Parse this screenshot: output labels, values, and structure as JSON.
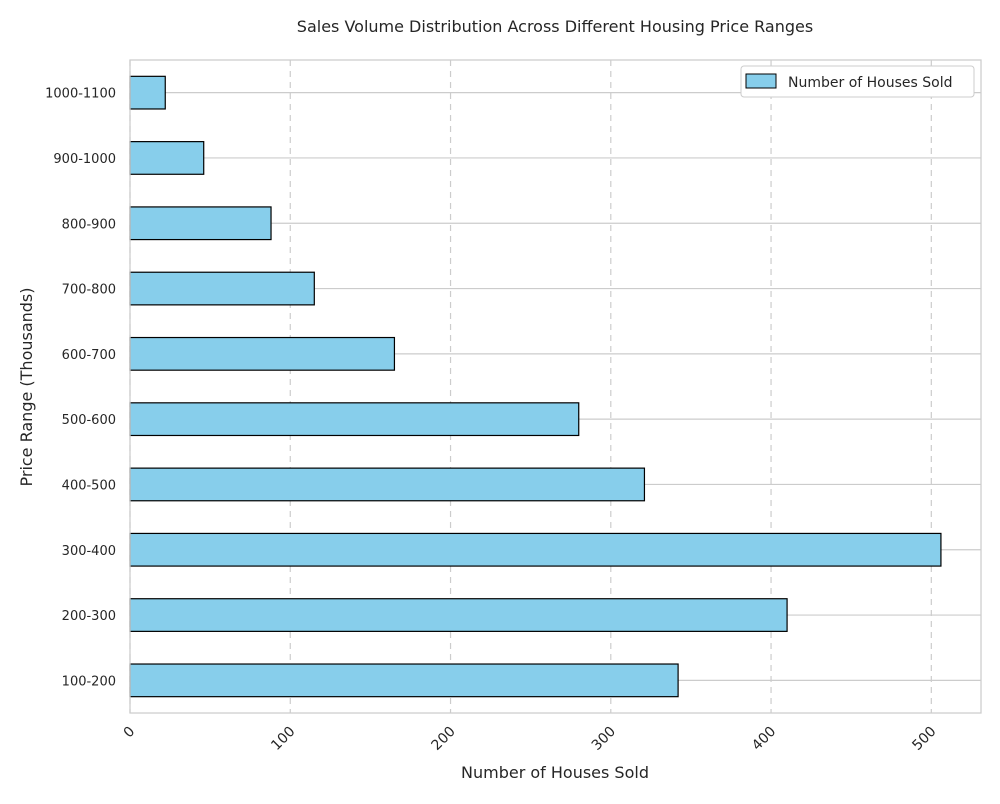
{
  "chart_data": {
    "type": "bar",
    "orientation": "horizontal",
    "title": "Sales Volume Distribution Across Different Housing Price Ranges",
    "xlabel": "Number of Houses Sold",
    "ylabel": "Price Range (Thousands)",
    "categories": [
      "100-200",
      "200-300",
      "300-400",
      "400-500",
      "500-600",
      "600-700",
      "700-800",
      "800-900",
      "900-1000",
      "1000-1100"
    ],
    "series": [
      {
        "name": "Number of Houses Sold",
        "values": [
          342,
          410,
          506,
          321,
          280,
          165,
          115,
          88,
          46,
          22
        ]
      }
    ],
    "xlim": [
      0,
      531
    ],
    "xticks": [
      0,
      100,
      200,
      300,
      400,
      500
    ],
    "xtick_labels": [
      "0",
      "100",
      "200",
      "300",
      "400",
      "500"
    ],
    "grid": true,
    "legend_position": "top-right",
    "colors": {
      "bar_fill": "#87ceeb",
      "bar_edge": "#000000",
      "grid": "#cccccc",
      "frame": "#cccccc"
    }
  }
}
